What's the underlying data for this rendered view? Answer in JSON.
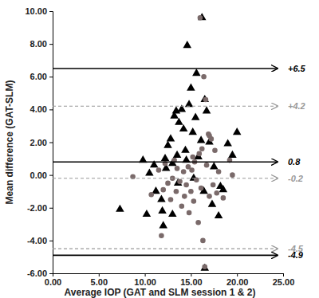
{
  "chart_data": {
    "type": "scatter",
    "x_label": "Average IOP (GAT and SLM session 1 & 2)",
    "y_label": "Mean difference (GAT-SLM)",
    "xlim": [
      0,
      25
    ],
    "ylim": [
      -6,
      10
    ],
    "xticks": [
      {
        "value": 0,
        "label": "0.00"
      },
      {
        "value": 5,
        "label": "5.00"
      },
      {
        "value": 10,
        "label": "10.00"
      },
      {
        "value": 15,
        "label": "15.00"
      },
      {
        "value": 20,
        "label": "20.00"
      },
      {
        "value": 25,
        "label": "25.00"
      }
    ],
    "yticks": [
      {
        "value": -6,
        "label": "-6.00"
      },
      {
        "value": -4,
        "label": "-4.00"
      },
      {
        "value": -2,
        "label": "-2.00"
      },
      {
        "value": 0,
        "label": "0.00"
      },
      {
        "value": 2,
        "label": "2.00"
      },
      {
        "value": 4,
        "label": "4.00"
      },
      {
        "value": 6,
        "label": "6.00"
      },
      {
        "value": 8,
        "label": "8.00"
      },
      {
        "value": 10,
        "label": "10.00"
      }
    ],
    "grid": false,
    "series": [
      {
        "color": "#000000",
        "marker": "triangle",
        "x": [
          7.3,
          9.8,
          10.2,
          10.5,
          11.0,
          11.2,
          11.8,
          11.9,
          12.0,
          12.3,
          12.5,
          12.8,
          13.0,
          13.2,
          13.4,
          13.5,
          13.6,
          13.7,
          14.0,
          14.2,
          14.4,
          14.5,
          14.6,
          14.8,
          15.0,
          15.2,
          15.3,
          15.5,
          15.6,
          15.8,
          16.1,
          16.2,
          16.4,
          16.5,
          16.7,
          17.0,
          17.3,
          17.5,
          18.0,
          18.2,
          18.5,
          19.0,
          19.5,
          20.0,
          16.5,
          13.0,
          12.2
        ],
        "values": [
          -2.1,
          0.9,
          -2.4,
          0.1,
          0.6,
          -1.0,
          -1.5,
          -2.2,
          -3.1,
          0.4,
          1.8,
          2.2,
          0.7,
          3.6,
          3.9,
          1.2,
          -0.5,
          3.2,
          4.0,
          2.8,
          1.5,
          0.9,
          7.9,
          4.3,
          5.3,
          2.6,
          -0.2,
          3.5,
          6.2,
          1.1,
          2.1,
          9.6,
          -1.0,
          4.6,
          3.9,
          2.0,
          -1.8,
          0.5,
          -2.5,
          -0.7,
          -0.9,
          1.9,
          1.2,
          2.6,
          -5.7,
          -2.4,
          1.0
        ]
      },
      {
        "color": "#7a6a6a",
        "marker": "circle",
        "x": [
          8.7,
          10.7,
          11.5,
          11.8,
          12.0,
          12.2,
          12.5,
          12.8,
          13.0,
          13.2,
          13.4,
          13.5,
          13.8,
          14.0,
          14.2,
          14.3,
          14.5,
          14.7,
          14.8,
          15.0,
          15.1,
          15.3,
          15.4,
          15.6,
          15.8,
          15.9,
          16.0,
          16.1,
          16.3,
          16.4,
          16.5,
          16.6,
          16.7,
          16.9,
          17.0,
          17.2,
          17.4,
          17.6,
          17.8,
          18.0,
          18.5,
          19.2,
          19.5,
          17.0,
          16.2,
          15.2
        ],
        "values": [
          -0.1,
          -1.2,
          0.3,
          -3.7,
          -0.9,
          0.7,
          -0.5,
          -1.5,
          -0.2,
          0.9,
          -1.0,
          0.4,
          -0.4,
          -1.9,
          0.2,
          -1.3,
          -0.6,
          0.5,
          -2.3,
          -1.0,
          0.3,
          -1.6,
          0.8,
          -0.3,
          -2.9,
          1.3,
          9.6,
          -0.8,
          -4.0,
          6.0,
          -5.6,
          4.6,
          0.6,
          2.5,
          -1.3,
          2.2,
          -0.6,
          1.5,
          -1.1,
          0.2,
          -1.4,
          0.9,
          0.0,
          2.4,
          1.6,
          1.1
        ]
      }
    ],
    "reference_lines": [
      {
        "value": 6.5,
        "label": "+6.5",
        "color": "#000000",
        "line_style": "solid"
      },
      {
        "value": 4.2,
        "label": "+4.2",
        "color": "#999999",
        "line_style": "dashed"
      },
      {
        "value": 0.8,
        "label": "0.8",
        "color": "#000000",
        "line_style": "solid"
      },
      {
        "value": -0.2,
        "label": "-0.2",
        "color": "#999999",
        "line_style": "dashed"
      },
      {
        "value": -4.5,
        "label": "-4.5",
        "color": "#999999",
        "line_style": "dashed"
      },
      {
        "value": -4.9,
        "label": "-4.9",
        "color": "#000000",
        "line_style": "solid"
      }
    ]
  }
}
